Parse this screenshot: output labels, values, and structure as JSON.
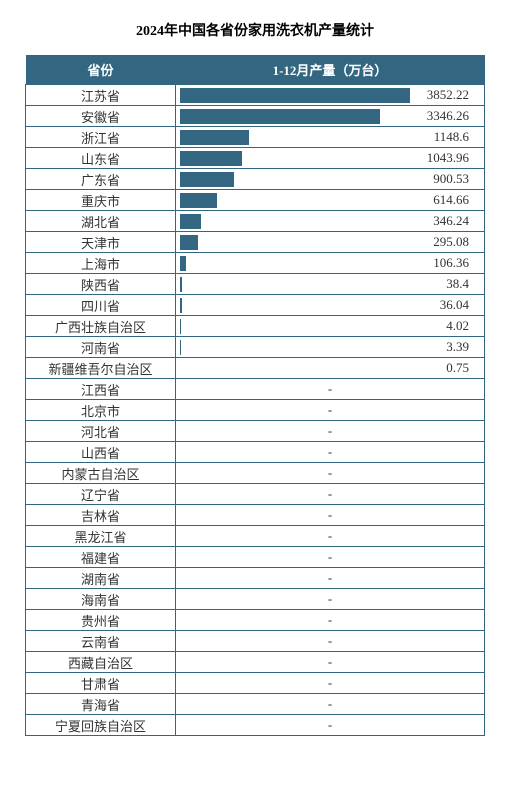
{
  "title": "2024年中国各省份家用洗衣机产量统计",
  "headers": {
    "province": "省份",
    "production": "1-12月产量（万台）"
  },
  "chart": {
    "type": "bar-table",
    "max_value": 3852.22,
    "bar_color": "#336680",
    "header_bg_color": "#336680",
    "header_text_color": "#ffffff",
    "border_color": "#336680",
    "text_color": "#333333",
    "background_color": "#ffffff",
    "title_fontsize": 14,
    "cell_fontsize": 13,
    "bar_max_width": 230
  },
  "rows": [
    {
      "province": "江苏省",
      "value": 3852.22,
      "display": "3852.22"
    },
    {
      "province": "安徽省",
      "value": 3346.26,
      "display": "3346.26"
    },
    {
      "province": "浙江省",
      "value": 1148.6,
      "display": "1148.6"
    },
    {
      "province": "山东省",
      "value": 1043.96,
      "display": "1043.96"
    },
    {
      "province": "广东省",
      "value": 900.53,
      "display": "900.53"
    },
    {
      "province": "重庆市",
      "value": 614.66,
      "display": "614.66"
    },
    {
      "province": "湖北省",
      "value": 346.24,
      "display": "346.24"
    },
    {
      "province": "天津市",
      "value": 295.08,
      "display": "295.08"
    },
    {
      "province": "上海市",
      "value": 106.36,
      "display": "106.36"
    },
    {
      "province": "陕西省",
      "value": 38.4,
      "display": "38.4"
    },
    {
      "province": "四川省",
      "value": 36.04,
      "display": "36.04"
    },
    {
      "province": "广西壮族自治区",
      "value": 4.02,
      "display": "4.02"
    },
    {
      "province": "河南省",
      "value": 3.39,
      "display": "3.39"
    },
    {
      "province": "新疆维吾尔自治区",
      "value": 0.75,
      "display": "0.75"
    },
    {
      "province": "江西省",
      "value": null,
      "display": "-"
    },
    {
      "province": "北京市",
      "value": null,
      "display": "-"
    },
    {
      "province": "河北省",
      "value": null,
      "display": "-"
    },
    {
      "province": "山西省",
      "value": null,
      "display": "-"
    },
    {
      "province": "内蒙古自治区",
      "value": null,
      "display": "-"
    },
    {
      "province": "辽宁省",
      "value": null,
      "display": "-"
    },
    {
      "province": "吉林省",
      "value": null,
      "display": "-"
    },
    {
      "province": "黑龙江省",
      "value": null,
      "display": "-"
    },
    {
      "province": "福建省",
      "value": null,
      "display": "-"
    },
    {
      "province": "湖南省",
      "value": null,
      "display": "-"
    },
    {
      "province": "海南省",
      "value": null,
      "display": "-"
    },
    {
      "province": "贵州省",
      "value": null,
      "display": "-"
    },
    {
      "province": "云南省",
      "value": null,
      "display": "-"
    },
    {
      "province": "西藏自治区",
      "value": null,
      "display": "-"
    },
    {
      "province": "甘肃省",
      "value": null,
      "display": "-"
    },
    {
      "province": "青海省",
      "value": null,
      "display": "-"
    },
    {
      "province": "宁夏回族自治区",
      "value": null,
      "display": "-"
    }
  ]
}
